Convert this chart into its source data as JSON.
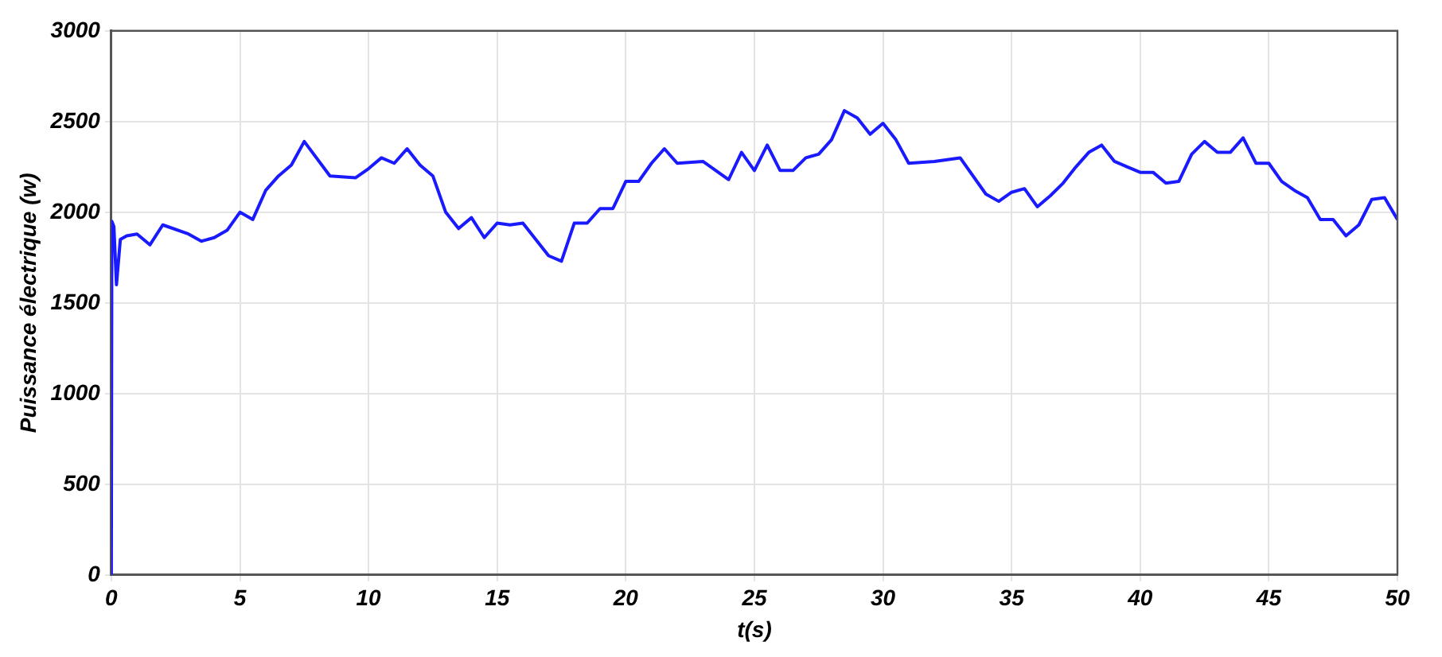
{
  "chart_data": {
    "type": "line",
    "xlabel": "t(s)",
    "ylabel": "Puissance électrique (w)",
    "x": [
      0,
      0.02,
      0.1,
      0.2,
      0.35,
      0.6,
      1,
      1.5,
      2,
      3,
      3.5,
      4,
      4.5,
      5,
      5.5,
      6,
      6.5,
      7,
      7.5,
      8.5,
      9.5,
      10,
      10.5,
      11,
      11.5,
      12,
      12.5,
      13,
      13.5,
      14,
      14.5,
      15,
      15.5,
      16,
      17,
      17.5,
      18,
      18.5,
      19,
      19.5,
      20,
      20.5,
      21,
      21.5,
      22,
      23,
      24,
      24.5,
      25,
      25.5,
      26,
      26.5,
      27,
      27.5,
      28,
      28.5,
      29,
      29.5,
      30,
      30.5,
      31,
      32,
      33,
      34,
      34.5,
      35,
      35.5,
      36,
      36.5,
      37,
      37.5,
      38,
      38.5,
      39,
      39.5,
      40,
      40.5,
      41,
      41.5,
      42,
      42.5,
      43,
      43.5,
      44,
      44.5,
      45,
      45.5,
      46,
      46.5,
      47,
      47.5,
      48,
      48.5,
      49,
      49.5,
      50
    ],
    "series": [
      {
        "color": "#1a1aff",
        "values": [
          0,
          1950,
          1920,
          1600,
          1850,
          1870,
          1880,
          1820,
          1930,
          1880,
          1840,
          1860,
          1900,
          2000,
          1960,
          2120,
          2200,
          2260,
          2390,
          2200,
          2190,
          2240,
          2300,
          2270,
          2350,
          2260,
          2200,
          2000,
          1910,
          1970,
          1860,
          1940,
          1930,
          1940,
          1760,
          1730,
          1940,
          1940,
          2020,
          2020,
          2170,
          2170,
          2270,
          2350,
          2270,
          2280,
          2180,
          2330,
          2230,
          2370,
          2230,
          2230,
          2300,
          2320,
          2400,
          2560,
          2520,
          2430,
          2490,
          2400,
          2270,
          2280,
          2300,
          2100,
          2060,
          2110,
          2130,
          2030,
          2090,
          2160,
          2250,
          2330,
          2370,
          2280,
          2250,
          2220,
          2220,
          2160,
          2170,
          2320,
          2390,
          2330,
          2330,
          2410,
          2270,
          2270,
          2170,
          2120,
          2080,
          1960,
          1960,
          1870,
          1930,
          2070,
          2080,
          1960
        ]
      }
    ],
    "xlim": [
      0,
      50
    ],
    "xticks": [
      0,
      5,
      10,
      15,
      20,
      25,
      30,
      35,
      40,
      45,
      50
    ],
    "ylim": [
      0,
      3000
    ],
    "yticks": [
      0,
      500,
      1000,
      1500,
      2000,
      2500,
      3000
    ],
    "grid": true,
    "legend": false,
    "marker": "none",
    "line_style": "solid"
  }
}
